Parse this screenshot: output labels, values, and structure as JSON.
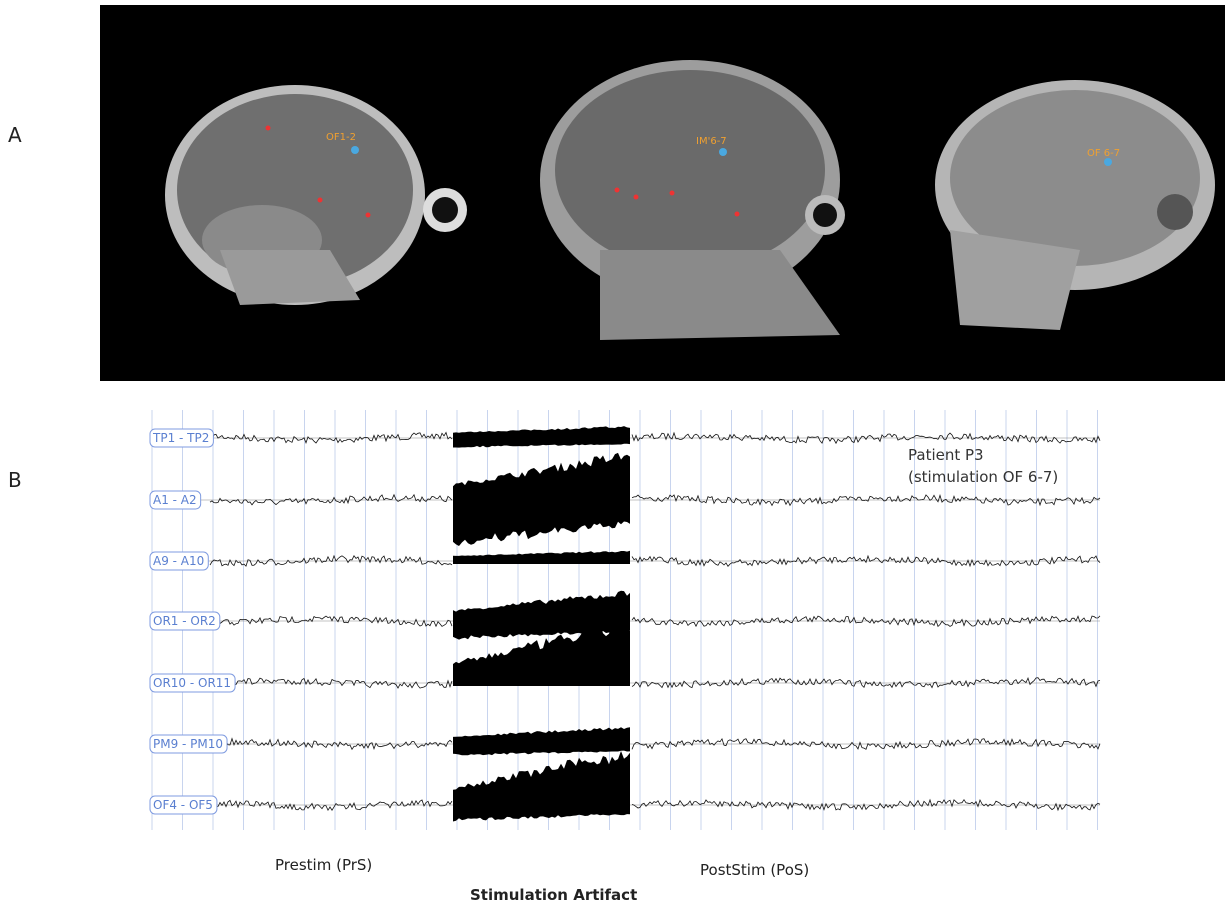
{
  "panel_a": {
    "label": "A",
    "electrodes": [
      "OF1-2",
      "IM'6-7",
      "OF 6-7"
    ]
  },
  "panel_b": {
    "label": "B",
    "channels": [
      "TP1 - TP2",
      "A1 - A2",
      "A9 - A10",
      "OR1 - OR2",
      "OR10 - OR11",
      "PM9 - PM10",
      "OF4 - OF5"
    ],
    "annotation": [
      "Patient P3",
      "(stimulation OF 6-7)"
    ],
    "phases": {
      "prestim": "Prestim (PrS)",
      "artifact": "Stimulation Artifact",
      "poststim": "PostStim (PoS)"
    }
  }
}
